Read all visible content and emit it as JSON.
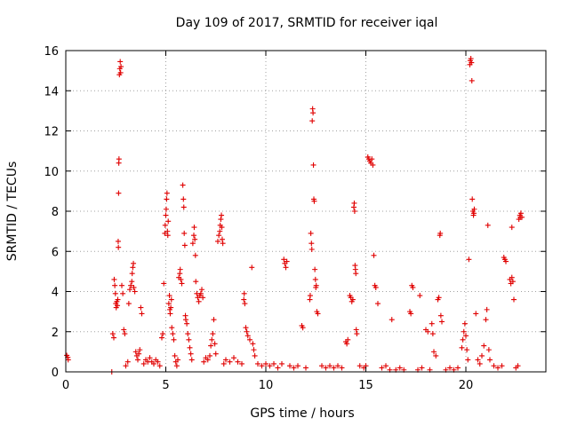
{
  "chart_data": {
    "type": "scatter",
    "title": "Day 109 of 2017, SRMTID for receiver iqal",
    "xlabel": "GPS time / hours",
    "ylabel": "SRMTID / TECUs",
    "xlim": [
      0,
      24
    ],
    "ylim": [
      0,
      16
    ],
    "xticks": [
      0,
      5,
      10,
      15,
      20
    ],
    "yticks": [
      0,
      2,
      4,
      6,
      8,
      10,
      12,
      14,
      16
    ],
    "grid": true,
    "legend": "none",
    "marker": "plus",
    "color": "#e00000",
    "series": [
      {
        "points": [
          [
            0.05,
            0.82
          ],
          [
            0.1,
            0.72
          ],
          [
            0.12,
            0.6
          ],
          [
            2.3,
            0.0
          ],
          [
            2.35,
            1.9
          ],
          [
            2.4,
            1.7
          ],
          [
            2.42,
            4.6
          ],
          [
            2.45,
            4.3
          ],
          [
            2.48,
            3.9
          ],
          [
            2.5,
            3.4
          ],
          [
            2.52,
            3.2
          ],
          [
            2.55,
            3.5
          ],
          [
            2.58,
            3.3
          ],
          [
            2.6,
            3.6
          ],
          [
            2.62,
            6.5
          ],
          [
            2.63,
            6.2
          ],
          [
            2.64,
            8.9
          ],
          [
            2.65,
            10.4
          ],
          [
            2.66,
            10.6
          ],
          [
            2.68,
            14.8
          ],
          [
            2.7,
            15.1
          ],
          [
            2.72,
            15.45
          ],
          [
            2.74,
            14.9
          ],
          [
            2.76,
            15.2
          ],
          [
            2.8,
            4.3
          ],
          [
            2.85,
            3.9
          ],
          [
            2.9,
            2.1
          ],
          [
            2.95,
            1.9
          ],
          [
            3.0,
            0.3
          ],
          [
            3.1,
            0.5
          ],
          [
            3.15,
            3.4
          ],
          [
            3.2,
            4.1
          ],
          [
            3.25,
            4.3
          ],
          [
            3.3,
            4.5
          ],
          [
            3.32,
            4.9
          ],
          [
            3.35,
            5.2
          ],
          [
            3.38,
            5.4
          ],
          [
            3.4,
            4.2
          ],
          [
            3.45,
            4.0
          ],
          [
            3.5,
            1.0
          ],
          [
            3.55,
            0.8
          ],
          [
            3.6,
            0.6
          ],
          [
            3.65,
            0.9
          ],
          [
            3.7,
            1.1
          ],
          [
            3.75,
            3.2
          ],
          [
            3.8,
            2.9
          ],
          [
            3.9,
            0.4
          ],
          [
            4.0,
            0.6
          ],
          [
            4.1,
            0.5
          ],
          [
            4.2,
            0.7
          ],
          [
            4.3,
            0.5
          ],
          [
            4.4,
            0.4
          ],
          [
            4.5,
            0.6
          ],
          [
            4.6,
            0.5
          ],
          [
            4.7,
            0.3
          ],
          [
            4.8,
            1.7
          ],
          [
            4.85,
            1.9
          ],
          [
            4.9,
            4.4
          ],
          [
            4.95,
            6.9
          ],
          [
            4.97,
            7.3
          ],
          [
            5.0,
            7.8
          ],
          [
            5.02,
            8.1
          ],
          [
            5.04,
            8.6
          ],
          [
            5.06,
            8.9
          ],
          [
            5.08,
            7.0
          ],
          [
            5.1,
            6.8
          ],
          [
            5.12,
            7.5
          ],
          [
            5.15,
            3.4
          ],
          [
            5.18,
            3.8
          ],
          [
            5.2,
            3.1
          ],
          [
            5.22,
            2.9
          ],
          [
            5.25,
            3.2
          ],
          [
            5.28,
            3.6
          ],
          [
            5.3,
            2.2
          ],
          [
            5.35,
            1.9
          ],
          [
            5.4,
            1.6
          ],
          [
            5.45,
            0.8
          ],
          [
            5.5,
            0.5
          ],
          [
            5.55,
            0.3
          ],
          [
            5.6,
            0.6
          ],
          [
            5.65,
            4.7
          ],
          [
            5.7,
            4.9
          ],
          [
            5.72,
            5.1
          ],
          [
            5.75,
            4.6
          ],
          [
            5.8,
            4.4
          ],
          [
            5.85,
            9.3
          ],
          [
            5.88,
            8.6
          ],
          [
            5.9,
            8.2
          ],
          [
            5.92,
            6.9
          ],
          [
            5.95,
            6.3
          ],
          [
            5.98,
            2.8
          ],
          [
            6.0,
            2.6
          ],
          [
            6.05,
            2.4
          ],
          [
            6.1,
            1.9
          ],
          [
            6.15,
            1.6
          ],
          [
            6.2,
            1.2
          ],
          [
            6.25,
            0.9
          ],
          [
            6.3,
            0.6
          ],
          [
            6.35,
            6.4
          ],
          [
            6.4,
            6.8
          ],
          [
            6.42,
            7.2
          ],
          [
            6.45,
            6.6
          ],
          [
            6.48,
            5.8
          ],
          [
            6.5,
            4.5
          ],
          [
            6.55,
            3.9
          ],
          [
            6.6,
            3.7
          ],
          [
            6.65,
            3.5
          ],
          [
            6.7,
            3.8
          ],
          [
            6.75,
            3.9
          ],
          [
            6.8,
            4.1
          ],
          [
            6.85,
            3.7
          ],
          [
            6.9,
            0.5
          ],
          [
            7.0,
            0.7
          ],
          [
            7.1,
            0.6
          ],
          [
            7.2,
            0.8
          ],
          [
            7.25,
            1.3
          ],
          [
            7.3,
            1.6
          ],
          [
            7.35,
            1.9
          ],
          [
            7.4,
            2.6
          ],
          [
            7.45,
            1.4
          ],
          [
            7.5,
            0.9
          ],
          [
            7.6,
            6.5
          ],
          [
            7.65,
            6.8
          ],
          [
            7.7,
            7.0
          ],
          [
            7.72,
            7.3
          ],
          [
            7.75,
            7.6
          ],
          [
            7.78,
            7.8
          ],
          [
            7.8,
            7.2
          ],
          [
            7.82,
            6.6
          ],
          [
            7.85,
            6.4
          ],
          [
            7.9,
            0.4
          ],
          [
            8.0,
            0.6
          ],
          [
            8.2,
            0.5
          ],
          [
            8.4,
            0.7
          ],
          [
            8.6,
            0.5
          ],
          [
            8.8,
            0.4
          ],
          [
            8.9,
            3.6
          ],
          [
            8.92,
            3.9
          ],
          [
            8.95,
            3.4
          ],
          [
            9.0,
            2.2
          ],
          [
            9.05,
            2.0
          ],
          [
            9.1,
            1.8
          ],
          [
            9.2,
            1.6
          ],
          [
            9.3,
            5.2
          ],
          [
            9.35,
            1.4
          ],
          [
            9.4,
            1.1
          ],
          [
            9.45,
            0.8
          ],
          [
            9.6,
            0.4
          ],
          [
            9.8,
            0.3
          ],
          [
            10.0,
            0.4
          ],
          [
            10.2,
            0.3
          ],
          [
            10.4,
            0.4
          ],
          [
            10.6,
            0.2
          ],
          [
            10.8,
            0.4
          ],
          [
            10.9,
            5.6
          ],
          [
            10.95,
            5.4
          ],
          [
            11.0,
            5.2
          ],
          [
            11.05,
            5.5
          ],
          [
            11.2,
            0.3
          ],
          [
            11.4,
            0.2
          ],
          [
            11.6,
            0.3
          ],
          [
            11.8,
            2.3
          ],
          [
            11.85,
            2.2
          ],
          [
            12.0,
            0.2
          ],
          [
            12.2,
            3.6
          ],
          [
            12.22,
            3.8
          ],
          [
            12.25,
            6.9
          ],
          [
            12.28,
            6.4
          ],
          [
            12.3,
            6.1
          ],
          [
            12.32,
            12.5
          ],
          [
            12.34,
            13.1
          ],
          [
            12.36,
            12.9
          ],
          [
            12.38,
            10.3
          ],
          [
            12.4,
            8.6
          ],
          [
            12.42,
            8.5
          ],
          [
            12.45,
            5.1
          ],
          [
            12.48,
            4.6
          ],
          [
            12.5,
            4.2
          ],
          [
            12.52,
            4.3
          ],
          [
            12.55,
            3.0
          ],
          [
            12.6,
            2.9
          ],
          [
            12.8,
            0.3
          ],
          [
            13.0,
            0.2
          ],
          [
            13.2,
            0.3
          ],
          [
            13.4,
            0.2
          ],
          [
            13.6,
            0.3
          ],
          [
            13.8,
            0.2
          ],
          [
            14.0,
            1.5
          ],
          [
            14.05,
            1.4
          ],
          [
            14.1,
            1.6
          ],
          [
            14.2,
            3.8
          ],
          [
            14.25,
            3.7
          ],
          [
            14.3,
            3.5
          ],
          [
            14.35,
            3.6
          ],
          [
            14.4,
            8.2
          ],
          [
            14.42,
            8.4
          ],
          [
            14.44,
            8.0
          ],
          [
            14.46,
            5.3
          ],
          [
            14.48,
            5.1
          ],
          [
            14.5,
            4.9
          ],
          [
            14.52,
            2.1
          ],
          [
            14.55,
            1.9
          ],
          [
            14.7,
            0.3
          ],
          [
            14.9,
            0.2
          ],
          [
            15.0,
            0.3
          ],
          [
            15.1,
            10.7
          ],
          [
            15.15,
            10.6
          ],
          [
            15.2,
            10.5
          ],
          [
            15.25,
            10.4
          ],
          [
            15.3,
            10.6
          ],
          [
            15.35,
            10.3
          ],
          [
            15.4,
            5.8
          ],
          [
            15.45,
            4.3
          ],
          [
            15.5,
            4.2
          ],
          [
            15.6,
            3.4
          ],
          [
            15.8,
            0.2
          ],
          [
            16.0,
            0.3
          ],
          [
            16.2,
            0.1
          ],
          [
            16.3,
            2.6
          ],
          [
            16.5,
            0.1
          ],
          [
            16.7,
            0.2
          ],
          [
            16.9,
            0.1
          ],
          [
            17.2,
            3.0
          ],
          [
            17.25,
            2.9
          ],
          [
            17.3,
            4.3
          ],
          [
            17.35,
            4.2
          ],
          [
            17.6,
            0.1
          ],
          [
            17.7,
            3.8
          ],
          [
            17.8,
            0.2
          ],
          [
            18.0,
            2.1
          ],
          [
            18.1,
            2.0
          ],
          [
            18.2,
            0.1
          ],
          [
            18.3,
            2.4
          ],
          [
            18.35,
            1.9
          ],
          [
            18.4,
            1.0
          ],
          [
            18.5,
            0.8
          ],
          [
            18.6,
            3.6
          ],
          [
            18.65,
            3.7
          ],
          [
            18.7,
            6.8
          ],
          [
            18.72,
            6.9
          ],
          [
            18.75,
            2.8
          ],
          [
            18.8,
            2.5
          ],
          [
            19.0,
            0.1
          ],
          [
            19.2,
            0.2
          ],
          [
            19.4,
            0.1
          ],
          [
            19.6,
            0.2
          ],
          [
            19.8,
            1.2
          ],
          [
            19.85,
            1.6
          ],
          [
            19.9,
            2.0
          ],
          [
            19.95,
            2.4
          ],
          [
            20.0,
            1.8
          ],
          [
            20.05,
            1.1
          ],
          [
            20.1,
            0.6
          ],
          [
            20.15,
            5.6
          ],
          [
            20.2,
            15.3
          ],
          [
            20.22,
            15.5
          ],
          [
            20.25,
            15.6
          ],
          [
            20.28,
            15.4
          ],
          [
            20.3,
            14.5
          ],
          [
            20.32,
            8.6
          ],
          [
            20.35,
            8.0
          ],
          [
            20.38,
            7.8
          ],
          [
            20.4,
            7.9
          ],
          [
            20.42,
            8.1
          ],
          [
            20.5,
            2.9
          ],
          [
            20.6,
            0.6
          ],
          [
            20.7,
            0.4
          ],
          [
            20.8,
            0.8
          ],
          [
            20.9,
            1.3
          ],
          [
            21.0,
            2.6
          ],
          [
            21.05,
            3.1
          ],
          [
            21.1,
            7.3
          ],
          [
            21.15,
            1.1
          ],
          [
            21.2,
            0.6
          ],
          [
            21.4,
            0.3
          ],
          [
            21.6,
            0.2
          ],
          [
            21.8,
            0.3
          ],
          [
            21.9,
            5.7
          ],
          [
            21.95,
            5.6
          ],
          [
            22.0,
            5.5
          ],
          [
            22.2,
            4.6
          ],
          [
            22.25,
            4.4
          ],
          [
            22.3,
            4.7
          ],
          [
            22.35,
            4.5
          ],
          [
            22.4,
            3.6
          ],
          [
            22.3,
            7.2
          ],
          [
            22.5,
            0.2
          ],
          [
            22.6,
            0.3
          ],
          [
            22.65,
            7.6
          ],
          [
            22.7,
            7.8
          ],
          [
            22.72,
            7.7
          ],
          [
            22.75,
            7.9
          ],
          [
            22.8,
            7.7
          ]
        ]
      }
    ]
  }
}
